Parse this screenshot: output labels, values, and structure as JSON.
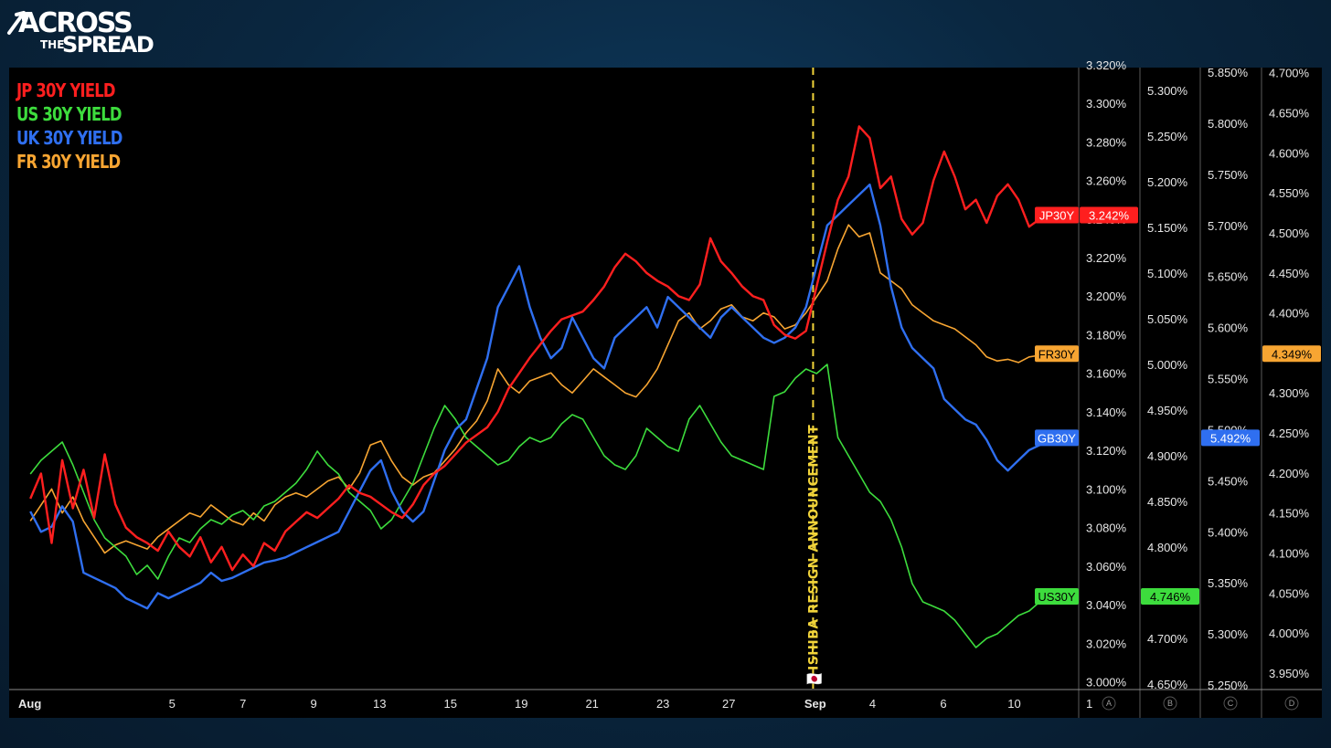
{
  "brand": {
    "line1": "ACROSS",
    "line2": "THE",
    "line3": "SPREAD"
  },
  "colors": {
    "jp": "#ff1f1f",
    "us": "#3ddc3d",
    "uk": "#2f6ff0",
    "fr": "#f7a532",
    "annotation": "#f2d43a"
  },
  "chart_data": {
    "type": "line",
    "legend": [
      {
        "label": "JP 30Y YIELD",
        "color": "#ff1f1f"
      },
      {
        "label": "US 30Y YIELD",
        "color": "#3ddc3d"
      },
      {
        "label": "UK 30Y YIELD",
        "color": "#2f6ff0"
      },
      {
        "label": "FR 30Y YIELD",
        "color": "#f7a532"
      }
    ],
    "x_ticks": [
      {
        "label": "Aug",
        "t": 0,
        "bold": true
      },
      {
        "label": "5",
        "t": 4.0
      },
      {
        "label": "7",
        "t": 6.0
      },
      {
        "label": "9",
        "t": 8.0
      },
      {
        "label": "13",
        "t": 9.86
      },
      {
        "label": "15",
        "t": 11.86
      },
      {
        "label": "19",
        "t": 13.86
      },
      {
        "label": "21",
        "t": 15.86
      },
      {
        "label": "23",
        "t": 17.86
      },
      {
        "label": "27",
        "t": 19.72
      },
      {
        "label": "Sep",
        "t": 22.16,
        "bold": true
      },
      {
        "label": "4",
        "t": 23.78
      },
      {
        "label": "6",
        "t": 25.78
      },
      {
        "label": "10",
        "t": 27.78
      },
      {
        "label": "1",
        "t": 29.9
      }
    ],
    "x_range": [
      -0.6,
      29.6
    ],
    "axes": [
      {
        "id": "A",
        "series": "JP30Y",
        "range": [
          2.9965,
          3.3185
        ],
        "ticks": [
          "3.000%",
          "3.020%",
          "3.040%",
          "3.060%",
          "3.080%",
          "3.100%",
          "3.120%",
          "3.140%",
          "3.160%",
          "3.180%",
          "3.200%",
          "3.220%",
          "3.240%",
          "3.260%",
          "3.280%",
          "3.300%",
          "3.320%"
        ]
      },
      {
        "id": "B",
        "series": "US30Y",
        "range": [
          4.645,
          5.325
        ],
        "ticks": [
          "4.650%",
          "4.700%",
          "4.750%",
          "4.800%",
          "4.850%",
          "4.900%",
          "4.950%",
          "5.000%",
          "5.050%",
          "5.100%",
          "5.150%",
          "5.200%",
          "5.250%",
          "5.300%"
        ]
      },
      {
        "id": "C",
        "series": "GB30Y",
        "range": [
          5.2465,
          5.8545
        ],
        "ticks": [
          "5.250%",
          "5.300%",
          "5.350%",
          "5.400%",
          "5.450%",
          "5.500%",
          "5.550%",
          "5.600%",
          "5.650%",
          "5.700%",
          "5.750%",
          "5.800%",
          "5.850%"
        ]
      },
      {
        "id": "D",
        "series": "FR30Y",
        "range": [
          3.9305,
          4.7065
        ],
        "ticks": [
          "3.950%",
          "4.000%",
          "4.050%",
          "4.100%",
          "4.150%",
          "4.200%",
          "4.250%",
          "4.300%",
          "4.350%",
          "4.400%",
          "4.450%",
          "4.500%",
          "4.550%",
          "4.600%",
          "4.650%",
          "4.700%"
        ]
      }
    ],
    "series": [
      {
        "name": "JP30Y",
        "legend": "JP 30Y YIELD",
        "axis": "A",
        "color": "#ff1f1f",
        "last": "3.242%",
        "x": [
          0,
          0.3,
          0.6,
          0.9,
          1.2,
          1.5,
          1.8,
          2.1,
          2.4,
          2.7,
          3.0,
          3.3,
          3.6,
          3.9,
          4.2,
          4.5,
          4.8,
          5.1,
          5.4,
          5.7,
          6.0,
          6.3,
          6.6,
          6.9,
          7.2,
          7.5,
          7.8,
          8.1,
          8.4,
          8.7,
          9.0,
          9.3,
          9.6,
          9.9,
          10.2,
          10.5,
          10.8,
          11.1,
          11.4,
          11.7,
          12.0,
          12.3,
          12.6,
          12.9,
          13.2,
          13.5,
          13.8,
          14.1,
          14.4,
          14.7,
          15.0,
          15.3,
          15.6,
          15.9,
          16.2,
          16.5,
          16.8,
          17.1,
          17.4,
          17.7,
          18.0,
          18.3,
          18.6,
          18.9,
          19.2,
          19.5,
          19.8,
          20.1,
          20.4,
          20.7,
          21.0,
          21.3,
          21.6,
          21.9,
          22.2,
          22.5,
          22.8,
          23.1,
          23.4,
          23.7,
          24.0,
          24.3,
          24.6,
          24.9,
          25.2,
          25.5,
          25.8,
          26.1,
          26.4,
          26.7,
          27.0,
          27.3,
          27.6,
          27.9,
          28.2,
          28.5,
          28.8
        ],
        "y": [
          3.095,
          3.108,
          3.072,
          3.115,
          3.09,
          3.11,
          3.085,
          3.118,
          3.092,
          3.08,
          3.075,
          3.072,
          3.068,
          3.078,
          3.07,
          3.065,
          3.075,
          3.062,
          3.07,
          3.058,
          3.066,
          3.06,
          3.072,
          3.068,
          3.078,
          3.083,
          3.088,
          3.085,
          3.09,
          3.095,
          3.102,
          3.098,
          3.096,
          3.092,
          3.088,
          3.085,
          3.092,
          3.102,
          3.108,
          3.112,
          3.118,
          3.124,
          3.128,
          3.132,
          3.14,
          3.152,
          3.16,
          3.168,
          3.175,
          3.182,
          3.188,
          3.19,
          3.192,
          3.198,
          3.205,
          3.215,
          3.222,
          3.218,
          3.212,
          3.208,
          3.205,
          3.2,
          3.198,
          3.206,
          3.23,
          3.218,
          3.212,
          3.205,
          3.2,
          3.198,
          3.185,
          3.18,
          3.178,
          3.182,
          3.205,
          3.228,
          3.25,
          3.262,
          3.288,
          3.282,
          3.256,
          3.262,
          3.24,
          3.232,
          3.238,
          3.26,
          3.275,
          3.262,
          3.245,
          3.25,
          3.238,
          3.252,
          3.258,
          3.25,
          3.236,
          3.24,
          3.242
        ]
      },
      {
        "name": "US30Y",
        "legend": "US 30Y YIELD",
        "axis": "B",
        "color": "#3ddc3d",
        "last": "4.746%",
        "x": [
          0,
          0.3,
          0.6,
          0.9,
          1.2,
          1.5,
          1.8,
          2.1,
          2.4,
          2.7,
          3.0,
          3.3,
          3.6,
          3.9,
          4.2,
          4.5,
          4.8,
          5.1,
          5.4,
          5.7,
          6.0,
          6.3,
          6.6,
          6.9,
          7.2,
          7.5,
          7.8,
          8.1,
          8.4,
          8.7,
          9.0,
          9.3,
          9.6,
          9.9,
          10.2,
          10.5,
          10.8,
          11.1,
          11.4,
          11.7,
          12.0,
          12.3,
          12.6,
          12.9,
          13.2,
          13.5,
          13.8,
          14.1,
          14.4,
          14.7,
          15.0,
          15.3,
          15.6,
          15.9,
          16.2,
          16.5,
          16.8,
          17.1,
          17.4,
          17.7,
          18.0,
          18.3,
          18.6,
          18.9,
          19.2,
          19.5,
          19.8,
          20.1,
          20.4,
          20.7,
          21.0,
          21.3,
          21.6,
          21.9,
          22.2,
          22.5,
          22.8,
          23.1,
          23.4,
          23.7,
          24.0,
          24.3,
          24.6,
          24.9,
          25.2,
          25.5,
          25.8,
          26.1,
          26.4,
          26.7,
          27.0,
          27.3,
          27.6,
          27.9,
          28.2,
          28.5,
          28.8
        ],
        "y": [
          4.88,
          4.895,
          4.905,
          4.915,
          4.89,
          4.86,
          4.83,
          4.81,
          4.8,
          4.79,
          4.77,
          4.78,
          4.765,
          4.79,
          4.81,
          4.805,
          4.82,
          4.83,
          4.825,
          4.835,
          4.84,
          4.83,
          4.845,
          4.85,
          4.86,
          4.87,
          4.885,
          4.905,
          4.89,
          4.88,
          4.86,
          4.85,
          4.84,
          4.82,
          4.83,
          4.85,
          4.87,
          4.9,
          4.93,
          4.955,
          4.94,
          4.92,
          4.91,
          4.9,
          4.89,
          4.895,
          4.91,
          4.92,
          4.915,
          4.92,
          4.935,
          4.945,
          4.94,
          4.92,
          4.9,
          4.89,
          4.885,
          4.9,
          4.93,
          4.92,
          4.91,
          4.905,
          4.94,
          4.955,
          4.935,
          4.915,
          4.9,
          4.895,
          4.89,
          4.885,
          4.965,
          4.97,
          4.985,
          4.995,
          4.99,
          5.0,
          4.92,
          4.9,
          4.88,
          4.86,
          4.85,
          4.83,
          4.8,
          4.76,
          4.74,
          4.735,
          4.73,
          4.72,
          4.705,
          4.69,
          4.7,
          4.705,
          4.715,
          4.725,
          4.73,
          4.74,
          4.746
        ]
      },
      {
        "name": "GB30Y",
        "legend": "UK 30Y YIELD",
        "axis": "C",
        "color": "#2f6ff0",
        "last": "5.492%",
        "x": [
          0,
          0.3,
          0.6,
          0.9,
          1.2,
          1.5,
          1.8,
          2.1,
          2.4,
          2.7,
          3.0,
          3.3,
          3.6,
          3.9,
          4.2,
          4.5,
          4.8,
          5.1,
          5.4,
          5.7,
          6.0,
          6.3,
          6.6,
          6.9,
          7.2,
          7.5,
          7.8,
          8.1,
          8.4,
          8.7,
          9.0,
          9.3,
          9.6,
          9.9,
          10.2,
          10.5,
          10.8,
          11.1,
          11.4,
          11.7,
          12.0,
          12.3,
          12.6,
          12.9,
          13.2,
          13.5,
          13.8,
          14.1,
          14.4,
          14.7,
          15.0,
          15.3,
          15.6,
          15.9,
          16.2,
          16.5,
          16.8,
          17.1,
          17.4,
          17.7,
          18.0,
          18.3,
          18.6,
          18.9,
          19.2,
          19.5,
          19.8,
          20.1,
          20.4,
          20.7,
          21.0,
          21.3,
          21.6,
          21.9,
          22.2,
          22.5,
          22.8,
          23.1,
          23.4,
          23.7,
          24.0,
          24.3,
          24.6,
          24.9,
          25.2,
          25.5,
          25.8,
          26.1,
          26.4,
          26.7,
          27.0,
          27.3,
          27.6,
          27.9,
          28.2,
          28.5,
          28.8
        ],
        "y": [
          5.42,
          5.4,
          5.405,
          5.425,
          5.41,
          5.36,
          5.355,
          5.35,
          5.345,
          5.335,
          5.33,
          5.325,
          5.34,
          5.335,
          5.34,
          5.345,
          5.35,
          5.36,
          5.352,
          5.355,
          5.36,
          5.365,
          5.37,
          5.372,
          5.375,
          5.38,
          5.385,
          5.39,
          5.395,
          5.4,
          5.42,
          5.44,
          5.46,
          5.47,
          5.44,
          5.42,
          5.41,
          5.42,
          5.45,
          5.48,
          5.5,
          5.51,
          5.54,
          5.57,
          5.62,
          5.64,
          5.66,
          5.62,
          5.59,
          5.57,
          5.58,
          5.61,
          5.59,
          5.57,
          5.56,
          5.59,
          5.6,
          5.61,
          5.62,
          5.6,
          5.63,
          5.62,
          5.61,
          5.6,
          5.59,
          5.61,
          5.62,
          5.61,
          5.6,
          5.59,
          5.585,
          5.59,
          5.6,
          5.62,
          5.66,
          5.7,
          5.71,
          5.72,
          5.73,
          5.74,
          5.7,
          5.64,
          5.6,
          5.58,
          5.57,
          5.56,
          5.53,
          5.52,
          5.51,
          5.505,
          5.49,
          5.47,
          5.46,
          5.47,
          5.48,
          5.485,
          5.492
        ]
      },
      {
        "name": "FR30Y",
        "legend": "FR 30Y YIELD",
        "axis": "D",
        "color": "#f7a532",
        "last": "4.349%",
        "x": [
          0,
          0.3,
          0.6,
          0.9,
          1.2,
          1.5,
          1.8,
          2.1,
          2.4,
          2.7,
          3.0,
          3.3,
          3.6,
          3.9,
          4.2,
          4.5,
          4.8,
          5.1,
          5.4,
          5.7,
          6.0,
          6.3,
          6.6,
          6.9,
          7.2,
          7.5,
          7.8,
          8.1,
          8.4,
          8.7,
          9.0,
          9.3,
          9.6,
          9.9,
          10.2,
          10.5,
          10.8,
          11.1,
          11.4,
          11.7,
          12.0,
          12.3,
          12.6,
          12.9,
          13.2,
          13.5,
          13.8,
          14.1,
          14.4,
          14.7,
          15.0,
          15.3,
          15.6,
          15.9,
          16.2,
          16.5,
          16.8,
          17.1,
          17.4,
          17.7,
          18.0,
          18.3,
          18.6,
          18.9,
          19.2,
          19.5,
          19.8,
          20.1,
          20.4,
          20.7,
          21.0,
          21.3,
          21.6,
          21.9,
          22.2,
          22.5,
          22.8,
          23.1,
          23.4,
          23.7,
          24.0,
          24.3,
          24.6,
          24.9,
          25.2,
          25.5,
          25.8,
          26.1,
          26.4,
          26.7,
          27.0,
          27.3,
          27.6,
          27.9,
          28.2,
          28.5,
          28.8
        ],
        "y": [
          4.14,
          4.16,
          4.18,
          4.15,
          4.17,
          4.14,
          4.12,
          4.1,
          4.11,
          4.115,
          4.11,
          4.105,
          4.12,
          4.13,
          4.14,
          4.15,
          4.145,
          4.16,
          4.15,
          4.14,
          4.135,
          4.15,
          4.14,
          4.16,
          4.17,
          4.175,
          4.17,
          4.18,
          4.19,
          4.195,
          4.18,
          4.2,
          4.235,
          4.24,
          4.215,
          4.195,
          4.185,
          4.195,
          4.2,
          4.215,
          4.23,
          4.25,
          4.265,
          4.29,
          4.33,
          4.31,
          4.3,
          4.315,
          4.32,
          4.325,
          4.31,
          4.3,
          4.315,
          4.33,
          4.32,
          4.31,
          4.3,
          4.295,
          4.31,
          4.33,
          4.36,
          4.39,
          4.4,
          4.38,
          4.39,
          4.405,
          4.41,
          4.395,
          4.39,
          4.4,
          4.395,
          4.38,
          4.385,
          4.4,
          4.42,
          4.44,
          4.48,
          4.51,
          4.495,
          4.5,
          4.45,
          4.44,
          4.43,
          4.41,
          4.4,
          4.39,
          4.385,
          4.38,
          4.37,
          4.36,
          4.345,
          4.34,
          4.342,
          4.338,
          4.345,
          4.347,
          4.349
        ]
      }
    ],
    "event": {
      "label": "ISHIBA RESIGN ANNOUNCEMENT",
      "flag": "🇯🇵",
      "t": 22.1
    },
    "grid": false,
    "legend_position": "top-left"
  }
}
